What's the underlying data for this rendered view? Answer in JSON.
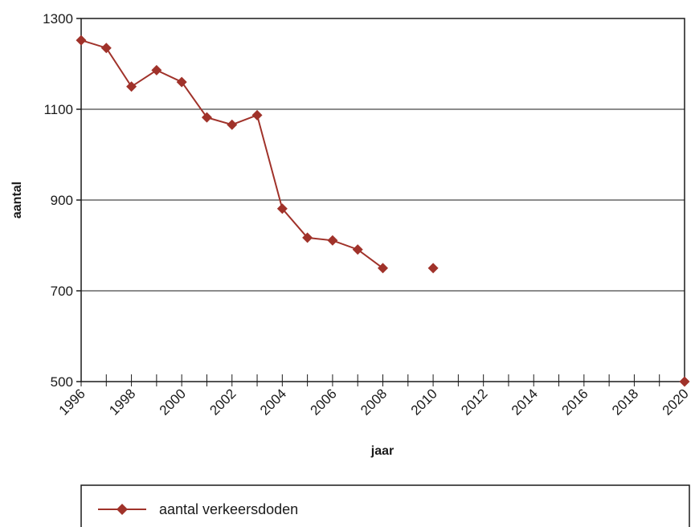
{
  "chart_data": {
    "type": "line",
    "title": "",
    "xlabel": "jaar",
    "ylabel": "aantal",
    "xlim": [
      1996,
      2020
    ],
    "ylim": [
      500,
      1300
    ],
    "yticks": [
      500,
      700,
      900,
      1100,
      1300
    ],
    "ytick_labels": [
      "500",
      "700",
      "900",
      "1100",
      "1300"
    ],
    "xticks": [
      1996,
      1998,
      2000,
      2002,
      2004,
      2006,
      2008,
      2010,
      2012,
      2014,
      2016,
      2018,
      2020
    ],
    "xtick_labels": [
      "1996",
      "1998",
      "2000",
      "2002",
      "2004",
      "2006",
      "2008",
      "2010",
      "2012",
      "2014",
      "2016",
      "2018",
      "2020"
    ],
    "grid": "horizontal",
    "legend_position": "bottom",
    "series": [
      {
        "name": "aantal verkeersdoden",
        "color": "#a0322a",
        "marker": "diamond",
        "x": [
          1996,
          1997,
          1998,
          1999,
          2000,
          2001,
          2002,
          2003,
          2004,
          2005,
          2006,
          2007,
          2008,
          2010,
          2020
        ],
        "y": [
          1252,
          1235,
          1150,
          1186,
          1160,
          1082,
          1066,
          1087,
          881,
          817,
          811,
          791,
          750,
          750,
          500
        ],
        "connect_until": 2008
      }
    ]
  }
}
